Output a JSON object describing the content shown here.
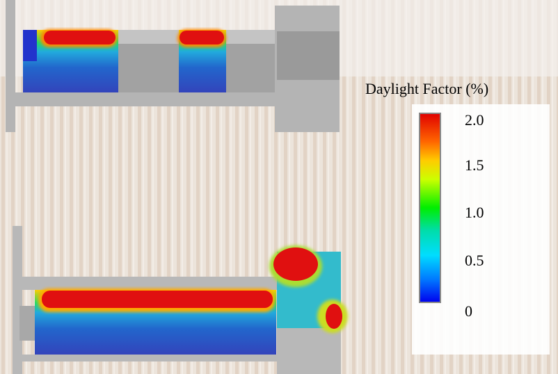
{
  "legend": {
    "title": "Daylight Factor (%)",
    "ticks": [
      "2.0",
      "1.5",
      "1.0",
      "0.5",
      "0"
    ]
  }
}
